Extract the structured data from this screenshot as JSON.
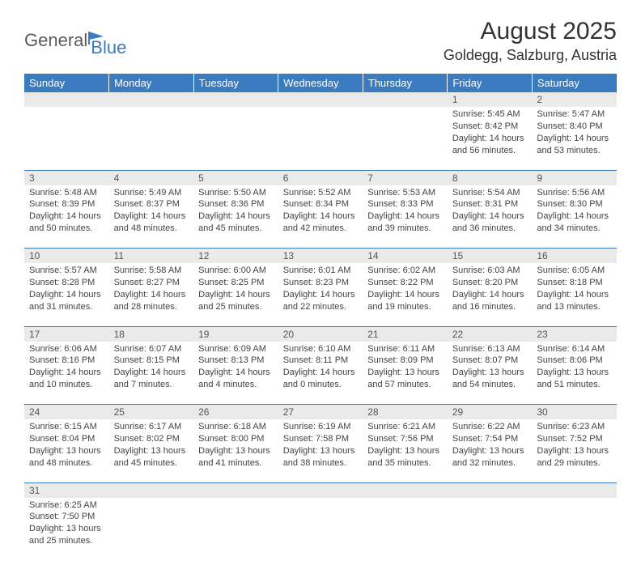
{
  "logo": {
    "part1": "General",
    "part2": "Blue"
  },
  "title": "August 2025",
  "location": "Goldegg, Salzburg, Austria",
  "colors": {
    "header_bg": "#3b7bbf",
    "header_text": "#ffffff",
    "daynum_bg": "#eaeaea",
    "row_border": "#3b7bbf",
    "text": "#444444",
    "logo_gray": "#5a5a5a",
    "logo_blue": "#3b7bbf"
  },
  "fonts": {
    "title_size": 30,
    "location_size": 18,
    "header_size": 13,
    "daynum_size": 12,
    "cell_size": 11
  },
  "dayHeaders": [
    "Sunday",
    "Monday",
    "Tuesday",
    "Wednesday",
    "Thursday",
    "Friday",
    "Saturday"
  ],
  "weeks": [
    {
      "nums": [
        "",
        "",
        "",
        "",
        "",
        "1",
        "2"
      ],
      "cells": [
        "",
        "",
        "",
        "",
        "",
        "Sunrise: 5:45 AM\nSunset: 8:42 PM\nDaylight: 14 hours and 56 minutes.",
        "Sunrise: 5:47 AM\nSunset: 8:40 PM\nDaylight: 14 hours and 53 minutes."
      ]
    },
    {
      "nums": [
        "3",
        "4",
        "5",
        "6",
        "7",
        "8",
        "9"
      ],
      "cells": [
        "Sunrise: 5:48 AM\nSunset: 8:39 PM\nDaylight: 14 hours and 50 minutes.",
        "Sunrise: 5:49 AM\nSunset: 8:37 PM\nDaylight: 14 hours and 48 minutes.",
        "Sunrise: 5:50 AM\nSunset: 8:36 PM\nDaylight: 14 hours and 45 minutes.",
        "Sunrise: 5:52 AM\nSunset: 8:34 PM\nDaylight: 14 hours and 42 minutes.",
        "Sunrise: 5:53 AM\nSunset: 8:33 PM\nDaylight: 14 hours and 39 minutes.",
        "Sunrise: 5:54 AM\nSunset: 8:31 PM\nDaylight: 14 hours and 36 minutes.",
        "Sunrise: 5:56 AM\nSunset: 8:30 PM\nDaylight: 14 hours and 34 minutes."
      ]
    },
    {
      "nums": [
        "10",
        "11",
        "12",
        "13",
        "14",
        "15",
        "16"
      ],
      "cells": [
        "Sunrise: 5:57 AM\nSunset: 8:28 PM\nDaylight: 14 hours and 31 minutes.",
        "Sunrise: 5:58 AM\nSunset: 8:27 PM\nDaylight: 14 hours and 28 minutes.",
        "Sunrise: 6:00 AM\nSunset: 8:25 PM\nDaylight: 14 hours and 25 minutes.",
        "Sunrise: 6:01 AM\nSunset: 8:23 PM\nDaylight: 14 hours and 22 minutes.",
        "Sunrise: 6:02 AM\nSunset: 8:22 PM\nDaylight: 14 hours and 19 minutes.",
        "Sunrise: 6:03 AM\nSunset: 8:20 PM\nDaylight: 14 hours and 16 minutes.",
        "Sunrise: 6:05 AM\nSunset: 8:18 PM\nDaylight: 14 hours and 13 minutes."
      ]
    },
    {
      "nums": [
        "17",
        "18",
        "19",
        "20",
        "21",
        "22",
        "23"
      ],
      "cells": [
        "Sunrise: 6:06 AM\nSunset: 8:16 PM\nDaylight: 14 hours and 10 minutes.",
        "Sunrise: 6:07 AM\nSunset: 8:15 PM\nDaylight: 14 hours and 7 minutes.",
        "Sunrise: 6:09 AM\nSunset: 8:13 PM\nDaylight: 14 hours and 4 minutes.",
        "Sunrise: 6:10 AM\nSunset: 8:11 PM\nDaylight: 14 hours and 0 minutes.",
        "Sunrise: 6:11 AM\nSunset: 8:09 PM\nDaylight: 13 hours and 57 minutes.",
        "Sunrise: 6:13 AM\nSunset: 8:07 PM\nDaylight: 13 hours and 54 minutes.",
        "Sunrise: 6:14 AM\nSunset: 8:06 PM\nDaylight: 13 hours and 51 minutes."
      ]
    },
    {
      "nums": [
        "24",
        "25",
        "26",
        "27",
        "28",
        "29",
        "30"
      ],
      "cells": [
        "Sunrise: 6:15 AM\nSunset: 8:04 PM\nDaylight: 13 hours and 48 minutes.",
        "Sunrise: 6:17 AM\nSunset: 8:02 PM\nDaylight: 13 hours and 45 minutes.",
        "Sunrise: 6:18 AM\nSunset: 8:00 PM\nDaylight: 13 hours and 41 minutes.",
        "Sunrise: 6:19 AM\nSunset: 7:58 PM\nDaylight: 13 hours and 38 minutes.",
        "Sunrise: 6:21 AM\nSunset: 7:56 PM\nDaylight: 13 hours and 35 minutes.",
        "Sunrise: 6:22 AM\nSunset: 7:54 PM\nDaylight: 13 hours and 32 minutes.",
        "Sunrise: 6:23 AM\nSunset: 7:52 PM\nDaylight: 13 hours and 29 minutes."
      ]
    },
    {
      "nums": [
        "31",
        "",
        "",
        "",
        "",
        "",
        ""
      ],
      "cells": [
        "Sunrise: 6:25 AM\nSunset: 7:50 PM\nDaylight: 13 hours and 25 minutes.",
        "",
        "",
        "",
        "",
        "",
        ""
      ]
    }
  ]
}
